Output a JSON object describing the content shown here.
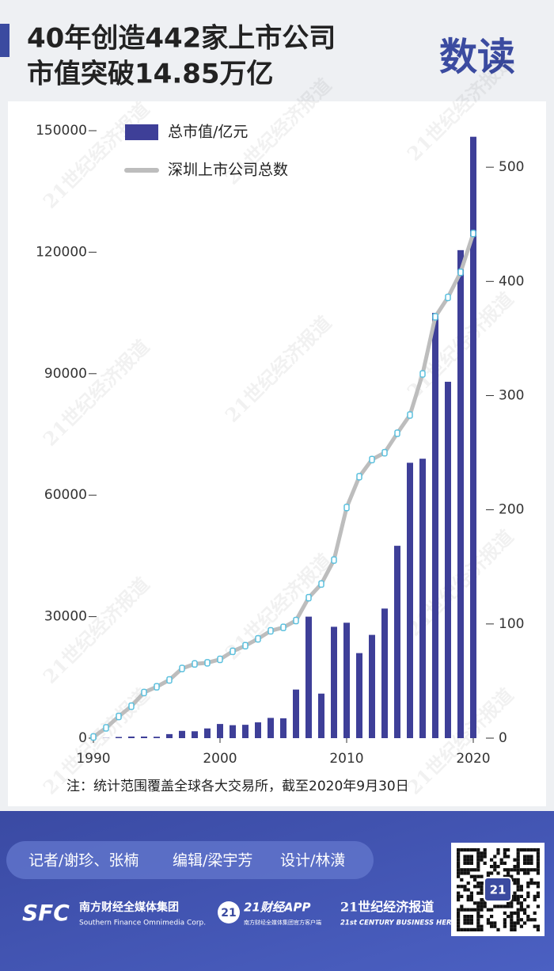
{
  "header": {
    "title_lines": [
      "40年创造442家上市公司",
      "市值突破14.85万亿"
    ],
    "logo": "数读"
  },
  "watermark": "21世纪经济报道",
  "chart_data": {
    "type": "bar-line",
    "x": [
      1990,
      1991,
      1992,
      1993,
      1994,
      1995,
      1996,
      1997,
      1998,
      1999,
      2000,
      2001,
      2002,
      2003,
      2004,
      2005,
      2006,
      2007,
      2008,
      2009,
      2010,
      2011,
      2012,
      2013,
      2014,
      2015,
      2016,
      2017,
      2018,
      2019,
      2020
    ],
    "series": [
      {
        "name": "总市值/亿元",
        "type": "bar",
        "color": "#3e3f98",
        "values": [
          null,
          50,
          300,
          400,
          400,
          350,
          1000,
          1800,
          1700,
          2400,
          3500,
          3200,
          3300,
          3900,
          5000,
          4900,
          12000,
          30000,
          11000,
          27500,
          28500,
          21000,
          25500,
          32000,
          47500,
          68000,
          69000,
          105000,
          88000,
          120500,
          148500
        ]
      },
      {
        "name": "深圳上市公司总数",
        "type": "line",
        "axis": "y2",
        "color": "#bdbdbd",
        "marker_color": "#5bc0de",
        "values": [
          1,
          9,
          19,
          28,
          40,
          45,
          51,
          61,
          65,
          66,
          69,
          76,
          81,
          87,
          94,
          97,
          103,
          123,
          135,
          156,
          202,
          229,
          244,
          250,
          267,
          283,
          319,
          369,
          386,
          408,
          442
        ]
      }
    ],
    "xlim": [
      1990,
      2020
    ],
    "xticks": [
      1990,
      2000,
      2010,
      2020
    ],
    "ylim": [
      0,
      150000
    ],
    "yticks": [
      0,
      30000,
      60000,
      90000,
      120000,
      150000
    ],
    "y2lim": [
      0,
      532
    ],
    "y2ticks": [
      0,
      100,
      200,
      300,
      400,
      500
    ],
    "legend": "top-left",
    "note": "注：统计范围覆盖全球各大交易所，截至2020年9月30日"
  },
  "footer": {
    "credits": [
      "记者/谢珍、张楠",
      "编辑/梁宇芳",
      "设计/林潢"
    ],
    "logos": [
      {
        "mark": "SFC",
        "name": "南方财经全媒体集团",
        "sub": "Southern Finance Omnimedia Corp."
      },
      {
        "mark": "21",
        "name": "21财经APP",
        "sub": "南方财经全媒体集团官方客户端"
      },
      {
        "name": "21世纪经济报道",
        "sub": "21st CENTURY BUSINESS HERALD"
      }
    ],
    "qr_badge": "21"
  }
}
